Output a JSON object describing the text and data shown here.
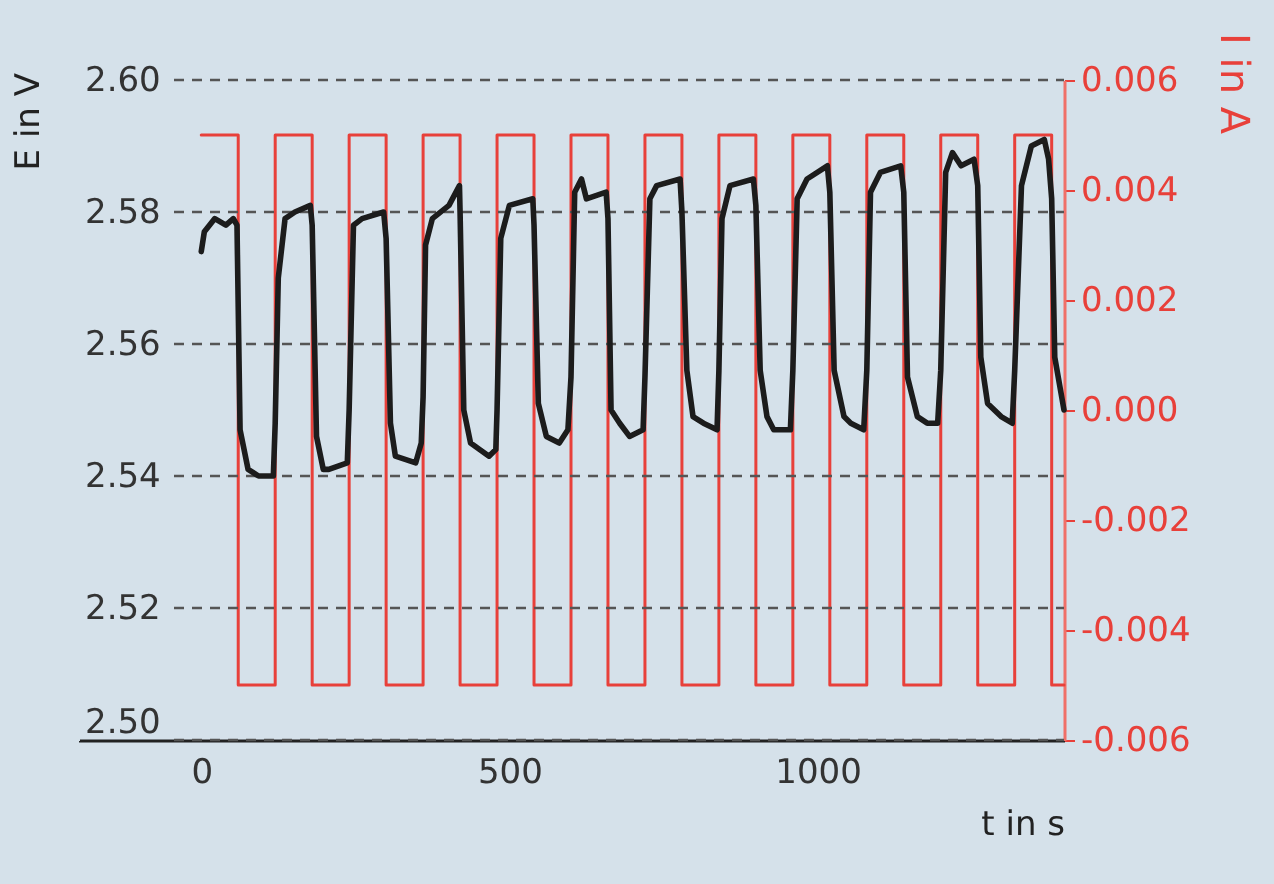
{
  "chart_data": {
    "type": "line",
    "xlabel": "t in s",
    "ylabel": "E in V",
    "y2label": "I in A",
    "xlim": [
      -200,
      1400
    ],
    "xticks": [
      0,
      500,
      1000
    ],
    "ylim": [
      2.5,
      2.6
    ],
    "yticks": [
      {
        "value": 2.5,
        "label": "2.50"
      },
      2.52,
      2.54,
      2.56,
      2.58,
      {
        "value": 2.6,
        "label": "2.60"
      }
    ],
    "y2lim": [
      -0.006,
      0.006
    ],
    "y2ticks": [
      -0.006,
      -0.004,
      -0.002,
      {
        "value": 0,
        "label": "0.000"
      },
      0.002,
      0.004,
      0.006
    ],
    "grid": "y",
    "series": [
      {
        "type": "step",
        "axis": "y2",
        "color": "#e8403a",
        "x": [
          0,
          60,
          120,
          180,
          240,
          300,
          360,
          420,
          480,
          540,
          600,
          660,
          720,
          780,
          840,
          900,
          960,
          1020,
          1080,
          1140,
          1200,
          1260,
          1320,
          1380,
          1400
        ],
        "values": [
          0.005,
          -0.005,
          0.005,
          -0.005,
          0.005,
          -0.005,
          0.005,
          -0.005,
          0.005,
          -0.005,
          0.005,
          -0.005,
          0.005,
          -0.005,
          0.005,
          -0.005,
          0.005,
          -0.005,
          0.005,
          -0.005,
          0.005,
          -0.005,
          0.005,
          -0.005,
          -0.005
        ]
      },
      {
        "type": "line",
        "color": "#1c1c1c",
        "x": [
          0,
          5,
          22,
          40,
          52,
          58,
          63,
          76,
          93,
          117,
          120,
          125,
          136,
          152,
          177,
          180,
          187,
          198,
          207,
          237,
          240,
          247,
          261,
          296,
          300,
          307,
          315,
          348,
          357,
          360,
          364,
          375,
          402,
          419,
          420,
          426,
          437,
          467,
          478,
          480,
          486,
          500,
          538,
          540,
          547,
          560,
          581,
          595,
          600,
          606,
          617,
          625,
          657,
          660,
          665,
          679,
          695,
          717,
          720,
          728,
          739,
          777,
          780,
          788,
          798,
          815,
          837,
          840,
          845,
          858,
          896,
          900,
          907,
          918,
          929,
          956,
          960,
          967,
          983,
          1016,
          1020,
          1027,
          1043,
          1054,
          1075,
          1080,
          1086,
          1102,
          1135,
          1140,
          1146,
          1162,
          1178,
          1195,
          1200,
          1208,
          1219,
          1233,
          1254,
          1260,
          1265,
          1276,
          1298,
          1316,
          1320,
          1331,
          1347,
          1368,
          1375,
          1380,
          1385,
          1400
        ],
        "values": [
          2.574,
          2.577,
          2.579,
          2.578,
          2.579,
          2.578,
          2.547,
          2.541,
          2.54,
          2.54,
          2.548,
          2.57,
          2.579,
          2.58,
          2.581,
          2.578,
          2.546,
          2.541,
          2.541,
          2.542,
          2.55,
          2.578,
          2.579,
          2.58,
          2.576,
          2.548,
          2.543,
          2.542,
          2.545,
          2.552,
          2.575,
          2.579,
          2.581,
          2.584,
          2.58,
          2.55,
          2.545,
          2.543,
          2.544,
          2.55,
          2.576,
          2.581,
          2.582,
          2.578,
          2.551,
          2.546,
          2.545,
          2.547,
          2.555,
          2.583,
          2.585,
          2.582,
          2.583,
          2.579,
          2.55,
          2.548,
          2.546,
          2.547,
          2.555,
          2.582,
          2.584,
          2.585,
          2.58,
          2.556,
          2.549,
          2.548,
          2.547,
          2.556,
          2.579,
          2.584,
          2.585,
          2.581,
          2.556,
          2.549,
          2.547,
          2.547,
          2.556,
          2.582,
          2.585,
          2.587,
          2.583,
          2.556,
          2.549,
          2.548,
          2.547,
          2.556,
          2.583,
          2.586,
          2.587,
          2.583,
          2.555,
          2.549,
          2.548,
          2.548,
          2.556,
          2.586,
          2.589,
          2.587,
          2.588,
          2.584,
          2.558,
          2.551,
          2.549,
          2.548,
          2.556,
          2.584,
          2.59,
          2.591,
          2.588,
          2.582,
          2.558,
          2.55
        ]
      }
    ]
  }
}
